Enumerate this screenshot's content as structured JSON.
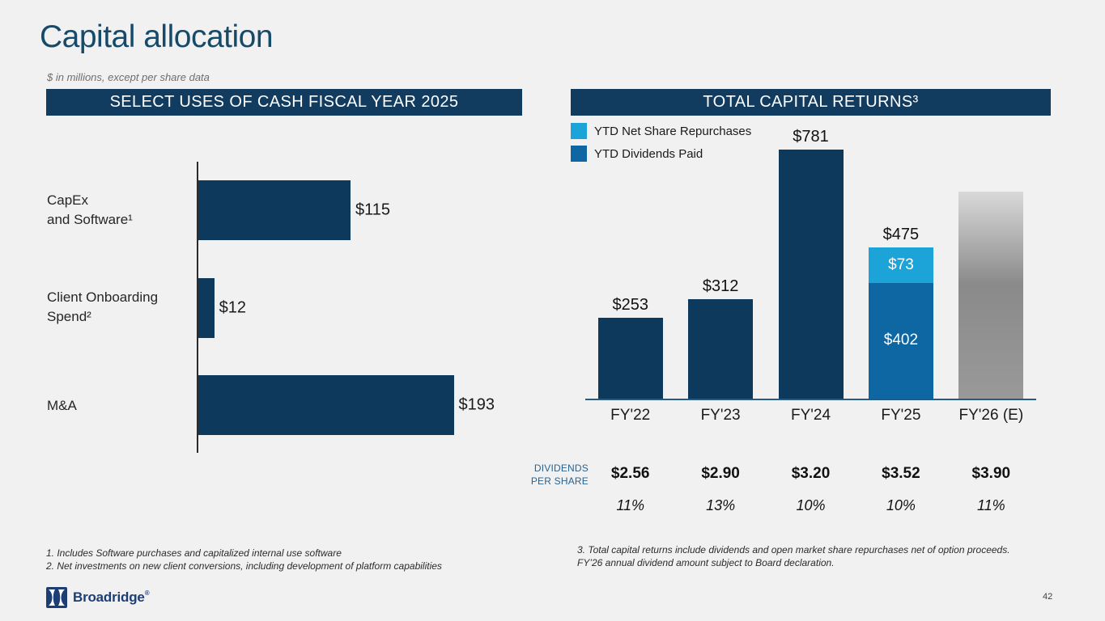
{
  "slide": {
    "title": "Capital allocation",
    "subtitle": "$ in millions, except per share data",
    "page_number": "42",
    "logo_text": "Broadridge",
    "logo_registered": "®"
  },
  "left_panel": {
    "header": "SELECT USES OF CASH FISCAL YEAR 2025",
    "footnotes": "1. Includes Software purchases and capitalized internal use software\n2. Net investments on new client conversions, including development of platform capabilities"
  },
  "right_panel": {
    "header": "TOTAL CAPITAL RETURNS³",
    "legend": [
      {
        "label": "YTD Net Share Repurchases",
        "color": "#1ca3d8"
      },
      {
        "label": "YTD Dividends Paid",
        "color": "#0e67a3"
      }
    ],
    "footnote": "3. Total capital returns include dividends and open market share repurchases net of option proceeds. FY’26 annual dividend amount subject to Board declaration."
  },
  "chart_data": [
    {
      "type": "bar",
      "orientation": "horizontal",
      "title": "SELECT USES OF CASH FISCAL YEAR 2025",
      "unit": "$ in millions",
      "grid": false,
      "xlim": [
        0,
        200
      ],
      "bar_color": "#0d3a5c",
      "categories": [
        "CapEx\nand Software¹",
        "Client Onboarding\nSpend²",
        "M&A"
      ],
      "values": [
        115,
        12,
        193
      ],
      "data_labels": [
        "$115",
        "$12",
        "$193"
      ]
    },
    {
      "type": "bar",
      "orientation": "vertical",
      "stacked": true,
      "title": "TOTAL CAPITAL RETURNS³",
      "unit": "$ in millions",
      "grid": false,
      "ylim": [
        0,
        800
      ],
      "legend_position": "top-left",
      "categories": [
        "FY'22",
        "FY'23",
        "FY'24",
        "FY'25",
        "FY'26 (E)"
      ],
      "columns": [
        {
          "category": "FY'22",
          "total": 253,
          "total_label": "$253",
          "segments": [
            {
              "series": "Total capital returns",
              "value": 253,
              "color": "#0d3a5c"
            }
          ]
        },
        {
          "category": "FY'23",
          "total": 312,
          "total_label": "$312",
          "segments": [
            {
              "series": "Total capital returns",
              "value": 312,
              "color": "#0d3a5c"
            }
          ]
        },
        {
          "category": "FY'24",
          "total": 781,
          "total_label": "$781",
          "segments": [
            {
              "series": "Total capital returns",
              "value": 781,
              "color": "#0d3a5c"
            }
          ]
        },
        {
          "category": "FY'25",
          "total": 475,
          "total_label": "$475",
          "segments": [
            {
              "series": "YTD Dividends Paid",
              "value": 402,
              "label": "$402",
              "color": "#0e67a3"
            },
            {
              "series": "YTD Net Share Repurchases",
              "value": 73,
              "label": "$73",
              "color": "#1ca3d8"
            }
          ]
        },
        {
          "category": "FY'26 (E)",
          "estimated": true,
          "total": 650,
          "total_label": "",
          "segments": [
            {
              "series": "FY'26 estimate (unlabeled)",
              "value": 650,
              "gradient": [
                "#d9d9d9",
                "#8a8a8a",
                "#999999"
              ]
            }
          ]
        }
      ],
      "annotation_rows": {
        "row_label": "DIVIDENDS\nPER SHARE",
        "dividends_per_share": [
          "$2.56",
          "$2.90",
          "$3.20",
          "$3.52",
          "$3.90"
        ],
        "growth_pct": [
          "11%",
          "13%",
          "10%",
          "10%",
          "11%"
        ]
      }
    }
  ]
}
